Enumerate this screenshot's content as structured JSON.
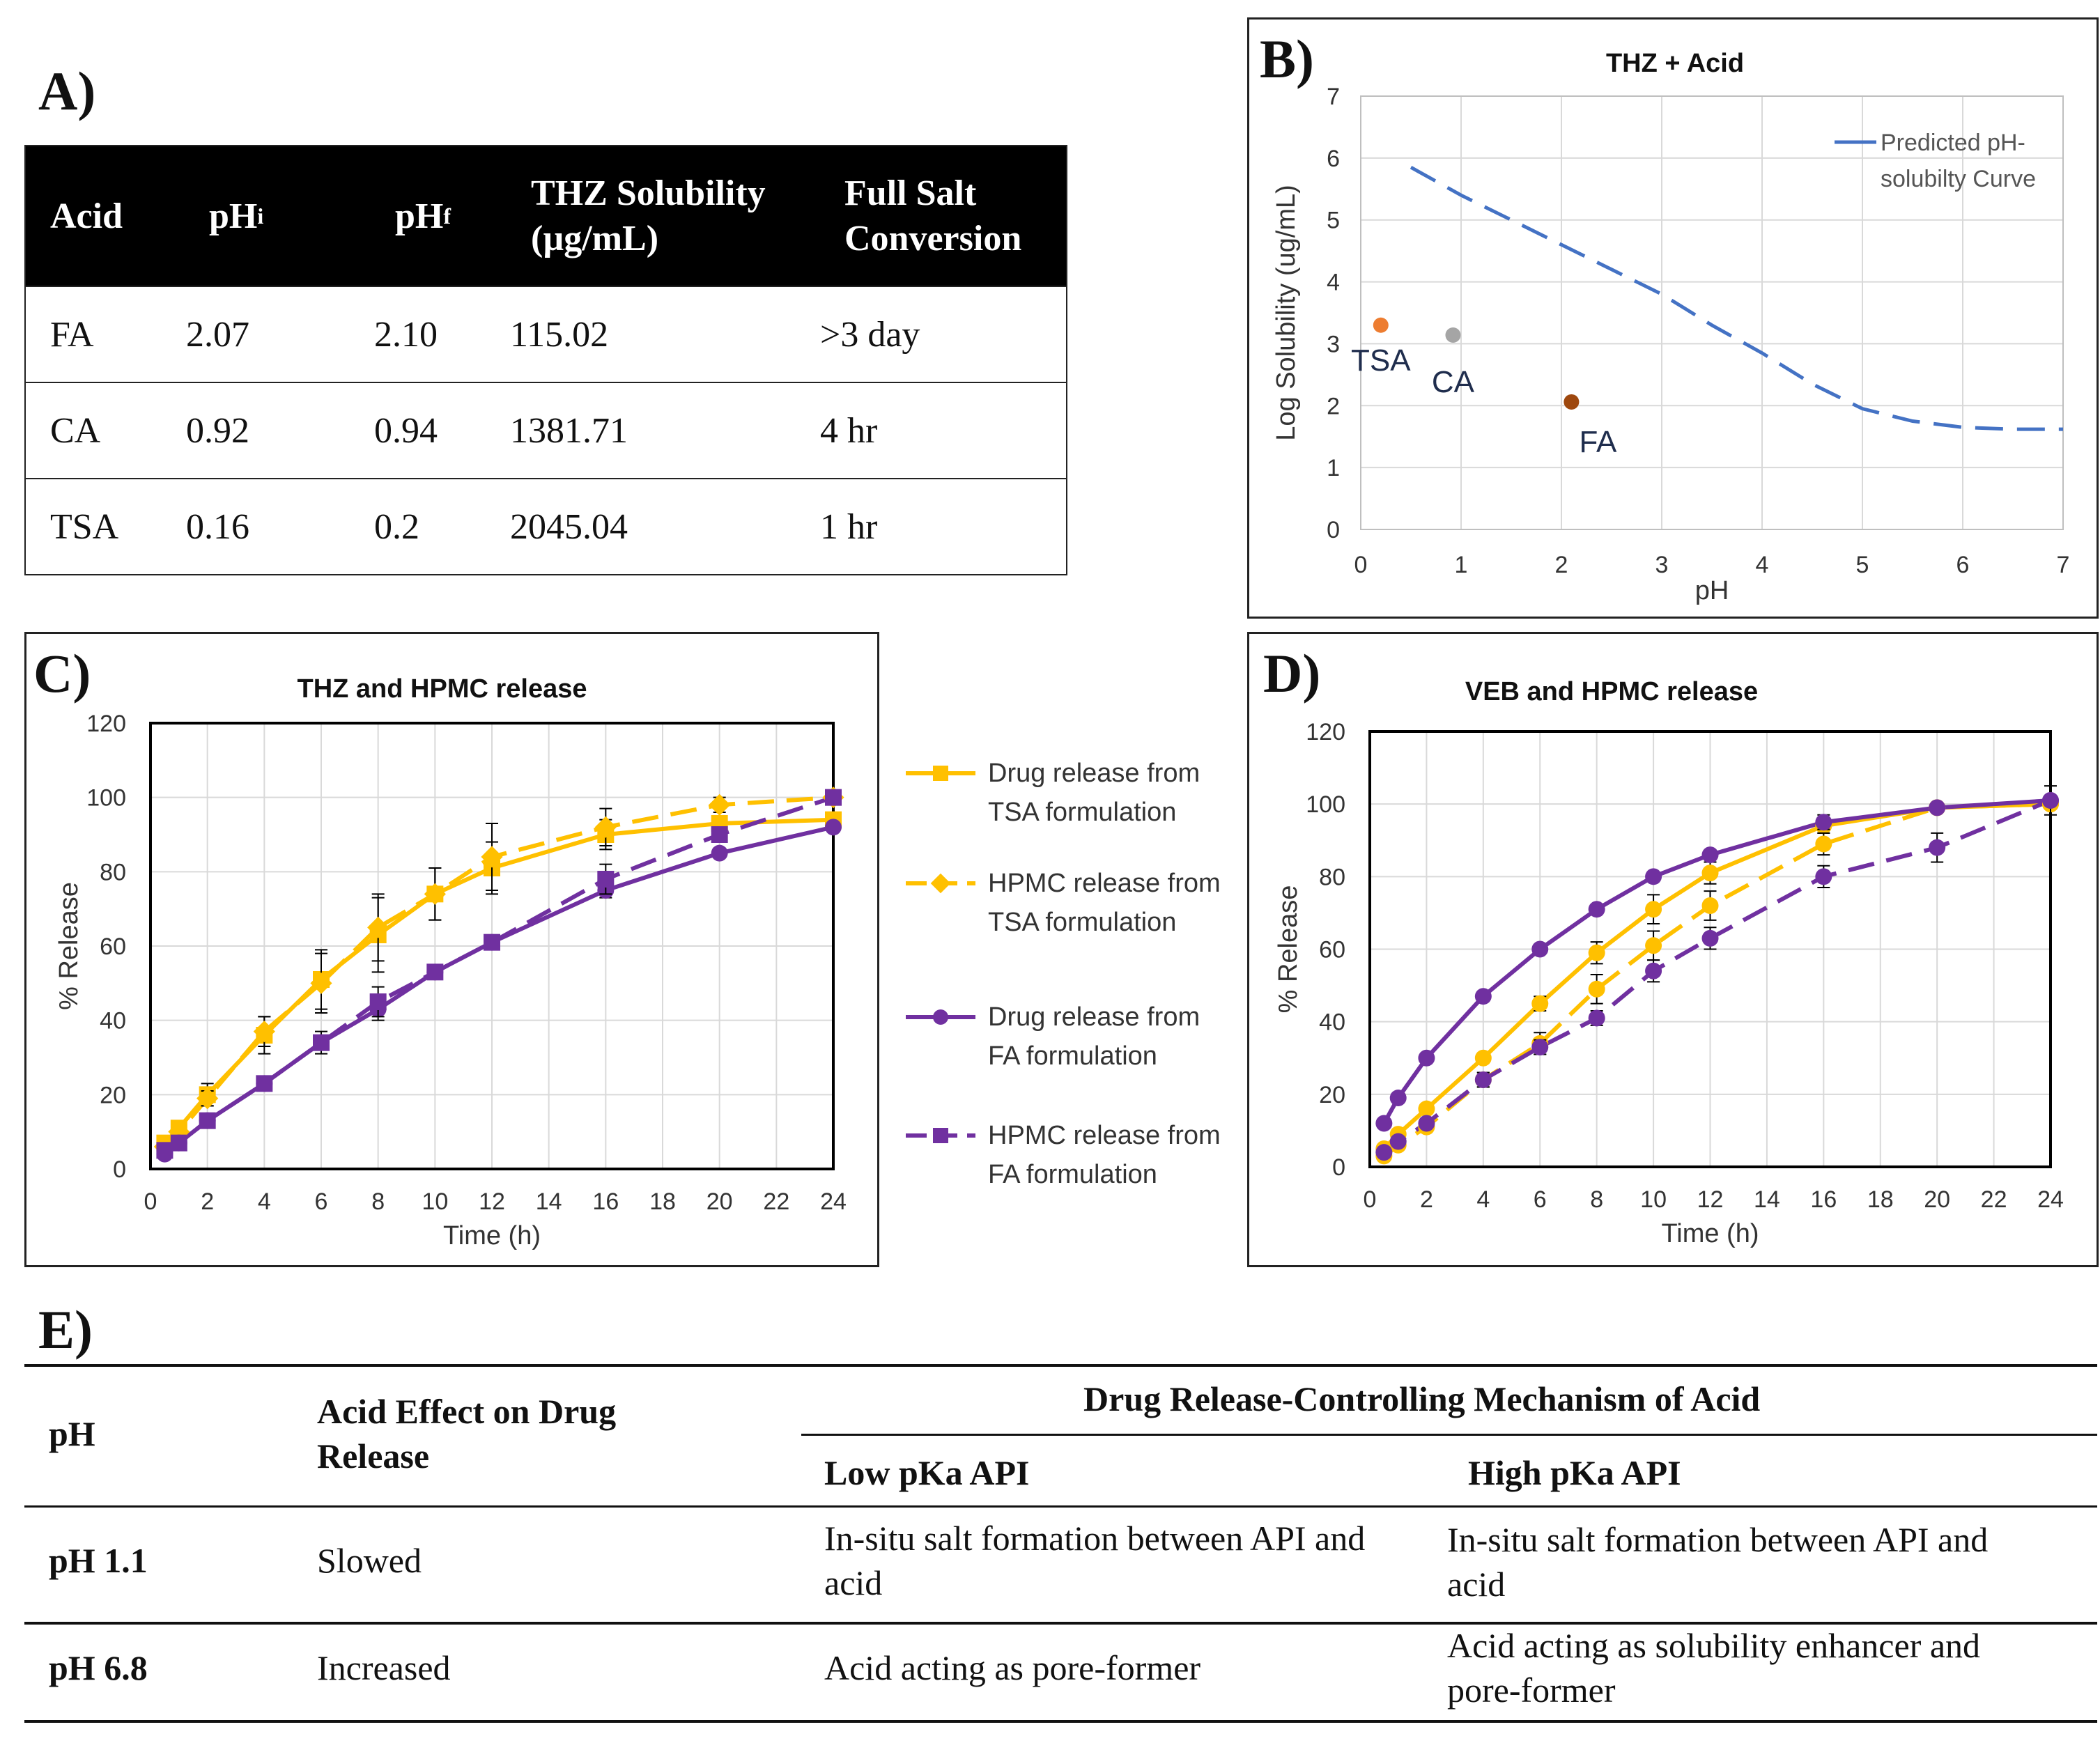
{
  "panel_labels": {
    "a": "A)",
    "b": "B)",
    "c": "C)",
    "d": "D)",
    "e": "E)"
  },
  "table_a": {
    "headers": {
      "acid": "Acid",
      "phi": "pH",
      "phi_sub": "i",
      "phf": "pH",
      "phf_sub": "f",
      "sol_line1": "THZ Solubility",
      "sol_line2": "(µg/mL)",
      "conv_line1": "Full Salt",
      "conv_line2": "Conversion"
    },
    "rows": [
      {
        "acid": "FA",
        "phi": "2.07",
        "phf": "2.10",
        "sol": "115.02",
        "conv": ">3 day"
      },
      {
        "acid": "CA",
        "phi": "0.92",
        "phf": "0.94",
        "sol": "1381.71",
        "conv": "4 hr"
      },
      {
        "acid": "TSA",
        "phi": "0.16",
        "phf": "0.2",
        "sol": "2045.04",
        "conv": "1 hr"
      }
    ]
  },
  "chart_data": [
    {
      "id": "B",
      "type": "scatter",
      "title": "THZ + Acid",
      "xlabel": "pH",
      "ylabel": "Log Solubility (ug/mL)",
      "xlim": [
        0,
        7
      ],
      "ylim": [
        0,
        7
      ],
      "xticks": [
        "0",
        "1",
        "2",
        "3",
        "4",
        "5",
        "6",
        "7"
      ],
      "yticks": [
        "0",
        "1",
        "2",
        "3",
        "4",
        "5",
        "6",
        "7"
      ],
      "grid": true,
      "legend_position": "top-right",
      "curve": {
        "name": "Predicted pH-solubilty Curve",
        "name_line1": "Predicted pH-",
        "name_line2": "solubilty Curve",
        "color": "#4472c4",
        "x": [
          0.5,
          1,
          1.5,
          2,
          2.5,
          3,
          3.5,
          4,
          4.5,
          5,
          5.5,
          6,
          6.5,
          7
        ],
        "y": [
          5.85,
          5.4,
          5.0,
          4.6,
          4.2,
          3.8,
          3.3,
          2.85,
          2.35,
          1.95,
          1.75,
          1.65,
          1.62,
          1.62
        ]
      },
      "points": [
        {
          "label": "TSA",
          "x": 0.2,
          "y": 3.3,
          "color": "#ed7d31"
        },
        {
          "label": "CA",
          "x": 0.92,
          "y": 3.14,
          "color": "#a5a5a5"
        },
        {
          "label": "FA",
          "x": 2.1,
          "y": 2.06,
          "color": "#9e480e"
        }
      ]
    },
    {
      "id": "C",
      "type": "line",
      "title": "THZ and HPMC release",
      "xlabel": "Time (h)",
      "ylabel": "% Release",
      "xlim": [
        0,
        24
      ],
      "ylim": [
        0,
        120
      ],
      "xticks": [
        "0",
        "2",
        "4",
        "6",
        "8",
        "10",
        "12",
        "14",
        "16",
        "18",
        "20",
        "22",
        "24"
      ],
      "yticks": [
        "0",
        "20",
        "40",
        "60",
        "80",
        "100",
        "120"
      ],
      "grid": true,
      "legend_position": "right",
      "x": [
        0.5,
        1,
        2,
        4,
        6,
        8,
        10,
        12,
        16,
        20,
        24
      ],
      "series": [
        {
          "name": "Drug release from TSA formulation",
          "name_line1": "Drug release from",
          "name_line2": "TSA formulation",
          "color": "#ffc000",
          "marker": "square",
          "dash": false,
          "values": [
            7,
            11,
            20,
            36,
            51,
            63,
            74,
            81,
            90,
            93,
            94
          ],
          "errors": [
            1,
            1,
            3,
            5,
            8,
            10,
            7,
            7,
            4,
            2,
            2
          ]
        },
        {
          "name": "HPMC release from TSA formulation",
          "name_line1": "HPMC release from",
          "name_line2": "TSA formulation",
          "color": "#ffc000",
          "marker": "diamond",
          "dash": true,
          "values": [
            6,
            10,
            19,
            37,
            50,
            65,
            74,
            84,
            92,
            98,
            100
          ],
          "errors": [
            1,
            1,
            2,
            4,
            8,
            9,
            7,
            9,
            5,
            2,
            1
          ]
        },
        {
          "name": "Drug release from FA formulation",
          "name_line1": "Drug release from",
          "name_line2": "FA formulation",
          "color": "#7030a0",
          "marker": "circle",
          "dash": false,
          "values": [
            4,
            7,
            13,
            23,
            34,
            43,
            53,
            61,
            75,
            85,
            92
          ],
          "errors": [
            1,
            1,
            1,
            2,
            2,
            3,
            2,
            2,
            2,
            1,
            1
          ]
        },
        {
          "name": "HPMC release from FA formulation",
          "name_line1": "HPMC release from",
          "name_line2": "FA formulation",
          "color": "#7030a0",
          "marker": "square",
          "dash": true,
          "values": [
            5,
            7,
            13,
            23,
            34,
            45,
            53,
            61,
            78,
            90,
            100
          ],
          "errors": [
            1,
            1,
            1,
            2,
            3,
            4,
            2,
            2,
            4,
            2,
            1
          ]
        }
      ]
    },
    {
      "id": "D",
      "type": "line",
      "title": "VEB and HPMC release",
      "xlabel": "Time (h)",
      "ylabel": "% Release",
      "xlim": [
        0,
        24
      ],
      "ylim": [
        0,
        120
      ],
      "xticks": [
        "0",
        "2",
        "4",
        "6",
        "8",
        "10",
        "12",
        "14",
        "16",
        "18",
        "20",
        "22",
        "24"
      ],
      "yticks": [
        "0",
        "20",
        "40",
        "60",
        "80",
        "100",
        "120"
      ],
      "grid": true,
      "x": [
        0.5,
        1,
        2,
        4,
        6,
        8,
        10,
        12,
        16,
        20,
        24
      ],
      "series": [
        {
          "name": "Drug release from TSA formulation",
          "color": "#ffc000",
          "marker": "circle",
          "dash": false,
          "values": [
            5,
            9,
            16,
            30,
            45,
            59,
            71,
            81,
            94,
            99,
            100
          ],
          "errors": [
            1,
            1,
            1,
            1,
            2,
            3,
            4,
            3,
            2,
            1,
            1
          ]
        },
        {
          "name": "HPMC release from TSA formulation",
          "color": "#ffc000",
          "marker": "circle",
          "dash": true,
          "values": [
            3,
            6,
            11,
            24,
            34,
            49,
            61,
            72,
            89,
            99,
            100
          ],
          "errors": [
            1,
            1,
            1,
            2,
            3,
            4,
            4,
            4,
            3,
            1,
            1
          ]
        },
        {
          "name": "Drug release from FA formulation",
          "color": "#7030a0",
          "marker": "circle",
          "dash": false,
          "values": [
            12,
            19,
            30,
            47,
            60,
            71,
            80,
            86,
            95,
            99,
            101
          ],
          "errors": [
            1,
            1,
            1,
            1,
            1,
            1,
            1,
            1,
            2,
            1,
            1
          ]
        },
        {
          "name": "HPMC release from FA formulation",
          "color": "#7030a0",
          "marker": "circle",
          "dash": true,
          "values": [
            4,
            7,
            12,
            24,
            33,
            41,
            54,
            63,
            80,
            88,
            101
          ],
          "errors": [
            1,
            1,
            1,
            2,
            2,
            2,
            3,
            3,
            3,
            4,
            4
          ]
        }
      ]
    }
  ],
  "table_e": {
    "col_ph": "pH",
    "col_effect_line1": "Acid Effect on Drug",
    "col_effect_line2": "Release",
    "group_header": "Drug Release-Controlling Mechanism of Acid",
    "col_low": "Low pKa API",
    "col_high": "High pKa API",
    "rows": [
      {
        "ph": "pH 1.1",
        "effect": "Slowed",
        "low_line1": "In-situ salt formation between API and",
        "low_line2": "acid",
        "high_line1": "In-situ salt formation between API and",
        "high_line2": "acid"
      },
      {
        "ph": "pH 6.8",
        "effect": "Increased",
        "low_line1": "Acid acting as pore-former",
        "low_line2": "",
        "high_line1": "Acid acting as solubility enhancer and",
        "high_line2": "pore-former"
      }
    ]
  }
}
